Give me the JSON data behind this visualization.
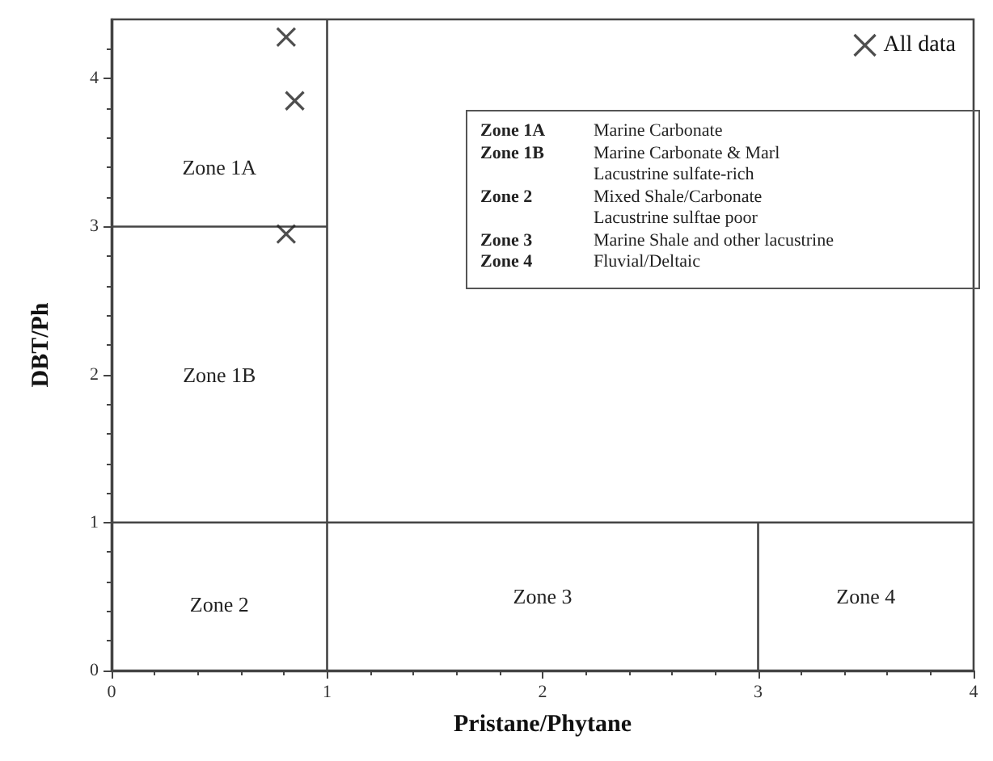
{
  "chart_data": {
    "type": "scatter",
    "xlabel": "Pristane/Phytane",
    "ylabel": "DBT/Ph",
    "xlim": [
      0,
      4
    ],
    "xticks": [
      0,
      1,
      2,
      3,
      4
    ],
    "ylim": [
      0,
      4.4
    ],
    "yticks": [
      0,
      1,
      2,
      3,
      4
    ],
    "grid": false,
    "legend": "top right",
    "series": [
      {
        "name": "All data",
        "color": "#222222",
        "marker": "cross",
        "x": [
          0.81,
          0.85,
          0.81
        ],
        "values": [
          4.28,
          3.85,
          2.95
        ]
      },
      {
        "type": "line",
        "color": "#444444",
        "marker": "none",
        "x": [
          1,
          1
        ],
        "values": [
          0,
          4.4
        ]
      },
      {
        "type": "line",
        "color": "#444444",
        "marker": "none",
        "x": [
          0,
          1
        ],
        "values": [
          3,
          3
        ]
      },
      {
        "type": "line",
        "color": "#444444",
        "marker": "none",
        "x": [
          0,
          4
        ],
        "values": [
          1,
          1
        ]
      },
      {
        "type": "line",
        "color": "#444444",
        "marker": "none",
        "x": [
          3,
          3
        ],
        "values": [
          0,
          1
        ]
      }
    ],
    "annotations": [
      "Zone 1A",
      "Zone 1B",
      "Zone 2",
      "Zone 3",
      "Zone 4",
      "Zone 1A",
      "Marine Carbonate",
      "Zone 1B",
      "Marine Carbonate & Marl",
      "Lacustrine sulfate-rich",
      "Zone 2",
      "Mixed Shale/Carbonate",
      "Lacustrine sulftae poor",
      "Zone 3",
      "Marine Shale and other lacustrine",
      "Zone 4",
      "Fluvial/Deltaic"
    ]
  }
}
